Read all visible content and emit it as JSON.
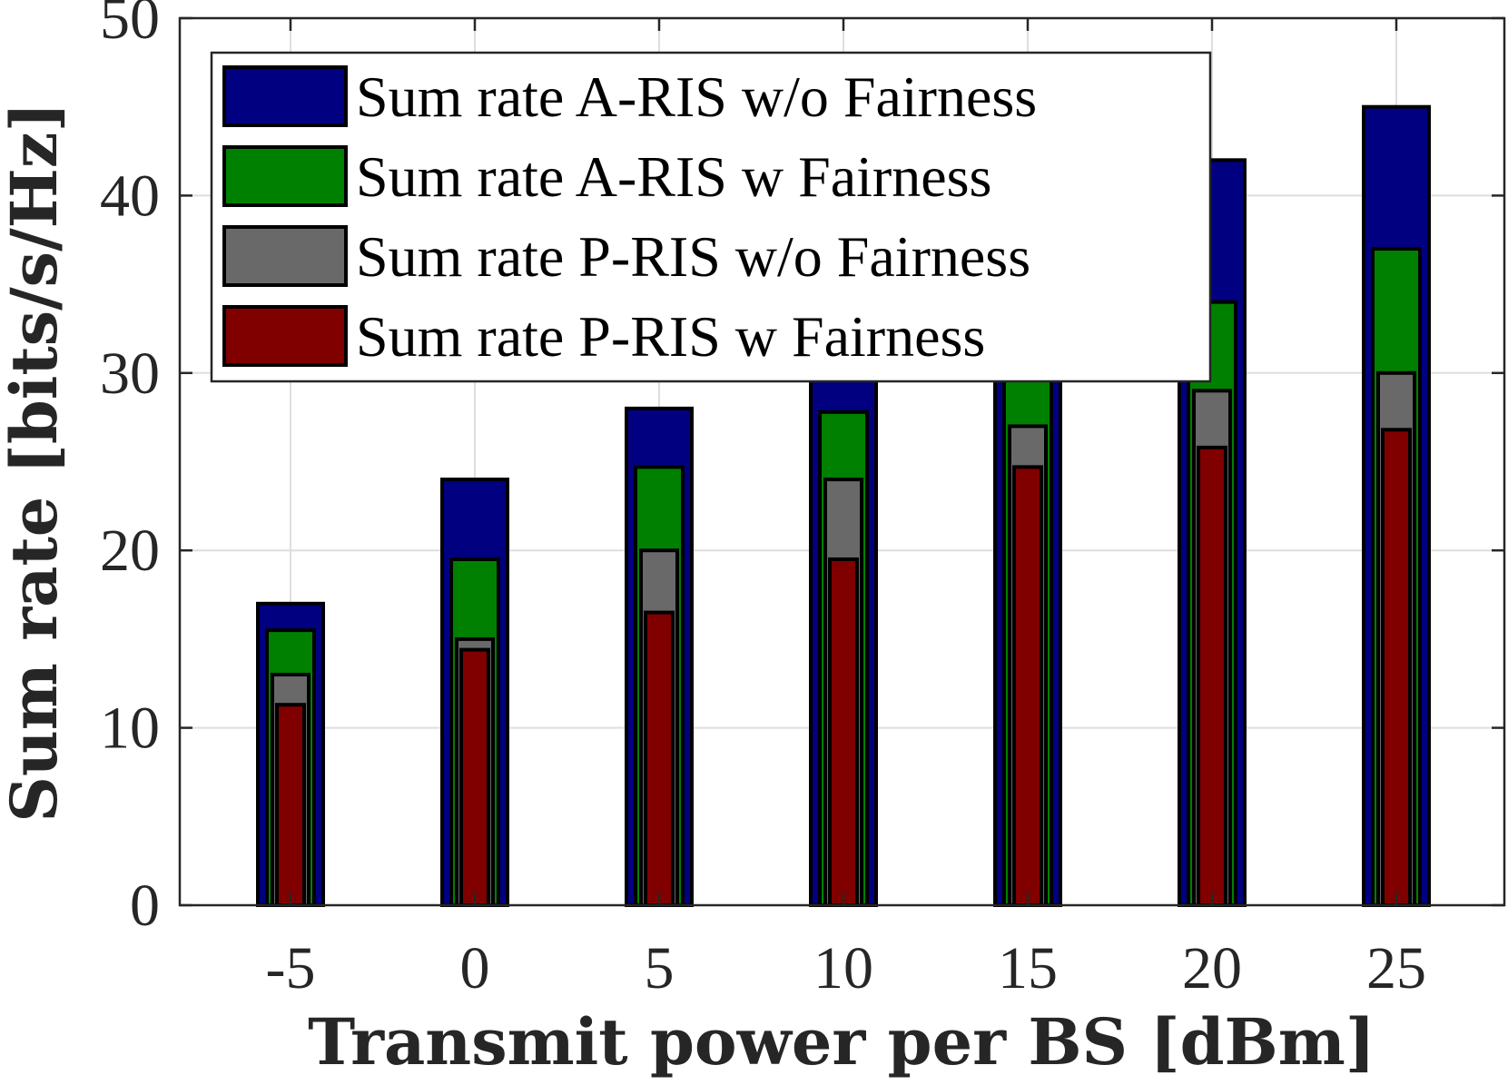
{
  "chart_data": {
    "type": "bar",
    "categories": [
      "-5",
      "0",
      "5",
      "10",
      "15",
      "20",
      "25"
    ],
    "series": [
      {
        "name": "Sum rate A-RIS w/o Fairness",
        "color": "#000080",
        "values": [
          17,
          24,
          28,
          32,
          35,
          42,
          45
        ]
      },
      {
        "name": "Sum rate A-RIS w Fairness",
        "color": "#008000",
        "values": [
          15.5,
          19.5,
          24.7,
          27.8,
          31,
          34,
          37
        ]
      },
      {
        "name": "Sum rate P-RIS w/o Fairness",
        "color": "#696969",
        "values": [
          13,
          15,
          20,
          24,
          27,
          29,
          30
        ]
      },
      {
        "name": "Sum rate P-RIS w Fairness",
        "color": "#800000",
        "values": [
          11.3,
          14.4,
          16.5,
          19.5,
          24.7,
          25.8,
          26.8
        ]
      }
    ],
    "xlabel": "Transmit power per BS [dBm]",
    "ylabel": "Sum rate [bits/s/Hz]",
    "ylim": [
      0,
      50
    ],
    "yticks": [
      "0",
      "10",
      "20",
      "30",
      "40",
      "50"
    ],
    "grid": true,
    "legend_position": "top-left"
  }
}
